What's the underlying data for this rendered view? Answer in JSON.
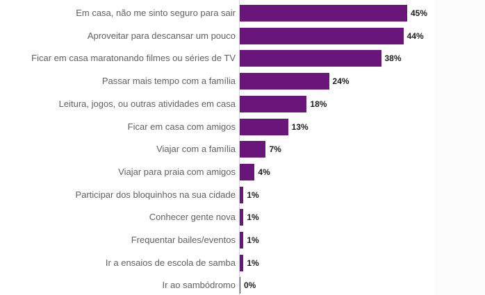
{
  "chart_data": {
    "type": "bar",
    "orientation": "horizontal",
    "title": "",
    "xlabel": "",
    "ylabel": "",
    "xlim": [
      0,
      45
    ],
    "grid": false,
    "legend": null,
    "bar_color": "#6a1579",
    "categories": [
      "Em casa, não me sinto seguro para sair",
      "Aproveitar para descansar um pouco",
      "Ficar em casa maratonando filmes ou séries de TV",
      "Passar mais tempo com a família",
      "Leitura, jogos, ou outras atividades em casa",
      "Ficar em casa com amigos",
      "Viajar com a família",
      "Viajar para praia com amigos",
      "Participar dos bloquinhos na sua cidade",
      "Conhecer gente nova",
      "Frequentar bailes/eventos",
      "Ir a ensaios de escola de samba",
      "Ir ao sambódromo"
    ],
    "values": [
      45,
      44,
      38,
      24,
      18,
      13,
      7,
      4,
      1,
      1,
      1,
      1,
      0
    ],
    "value_labels": [
      "45%",
      "44%",
      "38%",
      "24%",
      "18%",
      "13%",
      "7%",
      "4%",
      "1%",
      "1%",
      "1%",
      "1%",
      "0%"
    ]
  }
}
